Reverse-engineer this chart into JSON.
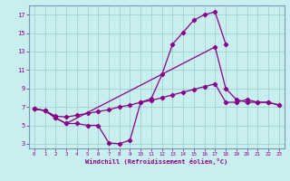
{
  "xlabel": "Windchill (Refroidissement éolien,°C)",
  "ylabel": "",
  "bg_color": "#c8eef0",
  "line_color": "#880088",
  "grid_color": "#99cccc",
  "xlim": [
    -0.5,
    23.5
  ],
  "ylim": [
    2.5,
    18.0
  ],
  "xticks": [
    0,
    1,
    2,
    3,
    4,
    5,
    6,
    7,
    8,
    9,
    10,
    11,
    12,
    13,
    14,
    15,
    16,
    17,
    18,
    19,
    20,
    21,
    22,
    23
  ],
  "yticks": [
    3,
    5,
    7,
    9,
    11,
    13,
    15,
    17
  ],
  "line1_x": [
    0,
    1,
    2,
    3,
    4,
    5,
    6,
    7,
    8,
    9,
    10,
    11,
    12,
    13,
    14,
    15,
    16,
    17,
    18,
    19,
    20,
    21,
    22,
    23
  ],
  "line1_y": [
    6.8,
    6.6,
    5.8,
    5.2,
    5.2,
    5.0,
    5.0,
    3.1,
    3.0,
    3.4,
    7.5,
    7.9,
    10.5,
    13.8,
    15.1,
    16.4,
    17.0,
    17.3,
    13.8,
    null,
    null,
    null,
    null,
    null
  ],
  "line2_x": [
    0,
    1,
    2,
    3,
    17,
    18,
    19,
    20,
    21,
    22,
    23
  ],
  "line2_y": [
    6.8,
    6.6,
    5.8,
    5.2,
    13.5,
    9.0,
    7.8,
    7.5,
    7.5,
    7.5,
    7.2
  ],
  "line3_x": [
    0,
    1,
    2,
    3,
    4,
    5,
    6,
    7,
    8,
    9,
    10,
    11,
    12,
    13,
    14,
    15,
    16,
    17,
    18,
    19,
    20,
    21,
    22,
    23
  ],
  "line3_y": [
    6.8,
    6.6,
    6.0,
    5.9,
    6.1,
    6.3,
    6.5,
    6.7,
    7.0,
    7.2,
    7.5,
    7.7,
    8.0,
    8.3,
    8.6,
    8.9,
    9.2,
    9.5,
    7.5,
    7.5,
    7.8,
    7.5,
    7.5,
    7.2
  ]
}
